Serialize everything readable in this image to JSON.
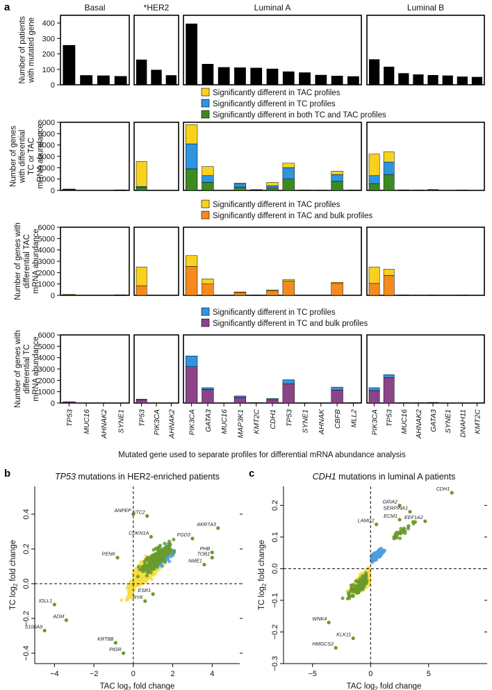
{
  "panels": {
    "a": "a",
    "b": "b",
    "c": "c"
  },
  "colors": {
    "tac": "#f8d21c",
    "tc": "#2f95e0",
    "both": "#3d8a22",
    "tac_bulk": "#f58a1f",
    "tc_bulk": "#8c4488",
    "bars": "#000000",
    "scatter_tac": "#f7dd45",
    "scatter_tc": "#4a9fe0",
    "scatter_both": "#6a9a2d"
  },
  "chart_data": [
    {
      "id": "a-row1",
      "type": "bar",
      "ylabel_lines": [
        "Number of patients",
        "with mutated gene"
      ],
      "ylim": [
        0,
        450
      ],
      "yticks": [
        "0",
        "100",
        "200",
        "300",
        "400"
      ],
      "group_titles": [
        "Basal",
        "*HER2",
        "Luminal A",
        "Luminal B"
      ],
      "groups": [
        {
          "name": "Basal",
          "categories": [
            "TP53",
            "MUC16",
            "AHNAK2",
            "SYNE1"
          ],
          "values": [
            257,
            62,
            60,
            56
          ]
        },
        {
          "name": "*HER2",
          "categories": [
            "TP53",
            "PIK3CA",
            "AHNAK2"
          ],
          "values": [
            163,
            97,
            62
          ]
        },
        {
          "name": "Luminal A",
          "categories": [
            "PIK3CA",
            "GATA3",
            "MUC16",
            "MAP3K1",
            "KMT2C",
            "CDH1",
            "TP53",
            "SYNE1",
            "AHNAK",
            "CBFB",
            "MLL2"
          ],
          "values": [
            396,
            135,
            114,
            112,
            110,
            104,
            86,
            80,
            64,
            58,
            55
          ]
        },
        {
          "name": "Luminal B",
          "categories": [
            "PIK3CA",
            "TP53",
            "MUC16",
            "AHNAK2",
            "GATA3",
            "SYNE1",
            "DNAH11",
            "KMT2C"
          ],
          "values": [
            165,
            117,
            75,
            67,
            63,
            60,
            53,
            51
          ]
        }
      ]
    },
    {
      "id": "a-row2",
      "type": "stacked-bar",
      "ylabel_lines": [
        "Number of genes",
        "with differential",
        "TC or TAC",
        "mRNA abundance"
      ],
      "ylim": [
        0,
        6000
      ],
      "yticks": [
        "0",
        "1000",
        "2000",
        "3000",
        "4000",
        "5000",
        "6000"
      ],
      "legend": [
        "Significantly different in TAC profiles",
        "Significantly different in TC profiles",
        "Significantly different in both TC and TAC profiles"
      ],
      "stack_order": [
        "both",
        "tc",
        "tac"
      ],
      "groups": [
        {
          "name": "Basal",
          "categories": [
            "TP53",
            "MUC16",
            "AHNAK2",
            "SYNE1"
          ],
          "both": [
            60,
            0,
            0,
            20
          ],
          "tc": [
            30,
            0,
            0,
            15
          ],
          "tac": [
            30,
            0,
            0,
            15
          ]
        },
        {
          "name": "*HER2",
          "categories": [
            "TP53",
            "PIK3CA",
            "AHNAK2"
          ],
          "both": [
            250,
            0,
            0
          ],
          "tc": [
            100,
            0,
            0
          ],
          "tac": [
            2200,
            0,
            0
          ]
        },
        {
          "name": "Luminal A",
          "categories": [
            "PIK3CA",
            "GATA3",
            "MUC16",
            "MAP3K1",
            "KMT2C",
            "CDH1",
            "TP53",
            "SYNE1",
            "AHNAK",
            "CBFB",
            "MLL2"
          ],
          "both": [
            1900,
            700,
            0,
            300,
            30,
            200,
            1000,
            20,
            10,
            800,
            20
          ],
          "tc": [
            2200,
            600,
            0,
            280,
            20,
            200,
            1000,
            10,
            10,
            600,
            10
          ],
          "tac": [
            1700,
            800,
            0,
            50,
            20,
            300,
            400,
            10,
            10,
            300,
            10
          ]
        },
        {
          "name": "Luminal B",
          "categories": [
            "PIK3CA",
            "TP53",
            "MUC16",
            "AHNAK2",
            "GATA3",
            "SYNE1",
            "DNAH11",
            "KMT2C"
          ],
          "both": [
            600,
            1400,
            30,
            20,
            50,
            0,
            20,
            0
          ],
          "tc": [
            700,
            1100,
            10,
            10,
            20,
            0,
            10,
            0
          ],
          "tac": [
            1900,
            900,
            10,
            10,
            10,
            0,
            10,
            0
          ]
        }
      ]
    },
    {
      "id": "a-row3",
      "type": "stacked-bar",
      "ylabel_lines": [
        "Number of genes with",
        "differential TAC",
        "mRNA abundance"
      ],
      "ylim": [
        0,
        6000
      ],
      "yticks": [
        "0",
        "1000",
        "2000",
        "3000",
        "4000",
        "5000",
        "6000"
      ],
      "legend": [
        "Significantly different in TAC profiles",
        "Significantly different in TAC and bulk profiles"
      ],
      "stack_order": [
        "tac_bulk",
        "tac"
      ],
      "groups": [
        {
          "name": "Basal",
          "categories": [
            "TP53",
            "MUC16",
            "AHNAK2",
            "SYNE1"
          ],
          "tac_bulk": [
            40,
            0,
            0,
            20
          ],
          "tac": [
            50,
            0,
            0,
            30
          ]
        },
        {
          "name": "*HER2",
          "categories": [
            "TP53",
            "PIK3CA",
            "AHNAK2"
          ],
          "tac_bulk": [
            850,
            0,
            0
          ],
          "tac": [
            1650,
            0,
            0
          ]
        },
        {
          "name": "Luminal A",
          "categories": [
            "PIK3CA",
            "GATA3",
            "MUC16",
            "MAP3K1",
            "KMT2C",
            "CDH1",
            "TP53",
            "SYNE1",
            "AHNAK",
            "CBFB",
            "MLL2"
          ],
          "tac_bulk": [
            2550,
            1000,
            0,
            250,
            20,
            400,
            1250,
            0,
            0,
            1050,
            0
          ],
          "tac": [
            950,
            450,
            0,
            50,
            10,
            80,
            150,
            0,
            0,
            100,
            0
          ]
        },
        {
          "name": "Luminal B",
          "categories": [
            "PIK3CA",
            "TP53",
            "MUC16",
            "AHNAK2",
            "GATA3",
            "SYNE1",
            "DNAH11",
            "KMT2C"
          ],
          "tac_bulk": [
            1050,
            1750,
            30,
            10,
            20,
            0,
            20,
            0
          ],
          "tac": [
            1450,
            550,
            10,
            10,
            10,
            0,
            10,
            0
          ]
        }
      ]
    },
    {
      "id": "a-row4",
      "type": "stacked-bar",
      "ylabel_lines": [
        "Number of genes with",
        "differential TC",
        "mRNA abundance"
      ],
      "ylim": [
        0,
        6000
      ],
      "yticks": [
        "0",
        "1000",
        "2000",
        "3000",
        "4000",
        "5000",
        "6000"
      ],
      "legend": [
        "Significantly different in TC profiles",
        "Significantly different in TC and bulk profiles"
      ],
      "stack_order": [
        "tc_bulk",
        "tc"
      ],
      "xlabel": "Mutated gene used to separate profiles for differential mRNA abundance analysis",
      "groups": [
        {
          "name": "Basal",
          "categories": [
            "TP53",
            "MUC16",
            "AHNAK2",
            "SYNE1"
          ],
          "tc_bulk": [
            80,
            0,
            0,
            0
          ],
          "tc": [
            30,
            0,
            0,
            0
          ]
        },
        {
          "name": "*HER2",
          "categories": [
            "TP53",
            "PIK3CA",
            "AHNAK2"
          ],
          "tc_bulk": [
            280,
            0,
            0
          ],
          "tc": [
            60,
            0,
            0
          ]
        },
        {
          "name": "Luminal A",
          "categories": [
            "PIK3CA",
            "GATA3",
            "MUC16",
            "MAP3K1",
            "KMT2C",
            "CDH1",
            "TP53",
            "SYNE1",
            "AHNAK",
            "CBFB",
            "MLL2"
          ],
          "tc_bulk": [
            3200,
            1200,
            0,
            500,
            20,
            300,
            1700,
            10,
            10,
            1150,
            20
          ],
          "tc": [
            950,
            150,
            0,
            120,
            10,
            100,
            350,
            10,
            10,
            250,
            10
          ]
        },
        {
          "name": "Luminal B",
          "categories": [
            "PIK3CA",
            "TP53",
            "MUC16",
            "AHNAK2",
            "GATA3",
            "SYNE1",
            "DNAH11",
            "KMT2C"
          ],
          "tc_bulk": [
            1100,
            2250,
            20,
            20,
            40,
            0,
            0,
            0
          ],
          "tc": [
            250,
            250,
            10,
            10,
            20,
            0,
            0,
            0
          ]
        }
      ]
    },
    {
      "id": "b",
      "type": "scatter",
      "title_gene": "TP53",
      "title_rest": " mutations in HER2-enriched patients",
      "xlabel": "TAC log",
      "xlabel_sub": "2",
      "xlabel_end": " fold change",
      "ylabel": "TC log",
      "ylabel_sub": "2",
      "ylabel_end": " fold change",
      "xlim": [
        -5,
        5.4
      ],
      "ylim": [
        -0.46,
        0.56
      ],
      "xticks": [
        -4,
        -2,
        0,
        2,
        4
      ],
      "xtick_labels": [
        "−4",
        "−2",
        "0",
        "2",
        "4"
      ],
      "yticks": [
        -0.4,
        -0.2,
        0.0,
        0.2,
        0.4
      ],
      "ytick_labels": [
        "−0.4",
        "−0.2",
        "0.0",
        "0.2",
        "0.4"
      ],
      "annotations": [
        {
          "label": "ANPEP",
          "x": 0.0,
          "y": 0.4
        },
        {
          "label": "STC2",
          "x": 0.7,
          "y": 0.39
        },
        {
          "label": "AKR7A3",
          "x": 4.3,
          "y": 0.32
        },
        {
          "label": "CDKN1A",
          "x": 0.9,
          "y": 0.27
        },
        {
          "label": "FGD3",
          "x": 3.0,
          "y": 0.26
        },
        {
          "label": "PHB",
          "x": 4.0,
          "y": 0.18
        },
        {
          "label": "TOB1",
          "x": 4.0,
          "y": 0.15
        },
        {
          "label": "PENK",
          "x": -0.8,
          "y": 0.15
        },
        {
          "label": "NME1",
          "x": 3.6,
          "y": 0.11
        },
        {
          "label": "ESR1",
          "x": 1.0,
          "y": -0.06
        },
        {
          "label": "RYK",
          "x": 0.6,
          "y": -0.1
        },
        {
          "label": "IGLL1",
          "x": -4.0,
          "y": -0.12
        },
        {
          "label": "ADM",
          "x": -3.4,
          "y": -0.21
        },
        {
          "label": "S100A9",
          "x": -4.5,
          "y": -0.27
        },
        {
          "label": "KRT8B",
          "x": -0.9,
          "y": -0.34
        },
        {
          "label": "PIGR",
          "x": -0.5,
          "y": -0.4
        }
      ]
    },
    {
      "id": "c",
      "type": "scatter",
      "title_gene": "CDH1",
      "title_rest": " mutations in luminal A patients",
      "xlabel": "TAC log",
      "xlabel_sub": "2",
      "xlabel_end": " fold change",
      "ylabel": "TC log",
      "ylabel_sub": "2",
      "ylabel_end": " fold change",
      "xlim": [
        -7.5,
        9.8
      ],
      "ylim": [
        -0.3,
        0.26
      ],
      "xticks": [
        -5,
        0,
        5
      ],
      "xtick_labels": [
        "−5",
        "0",
        "5"
      ],
      "yticks": [
        -0.3,
        -0.2,
        -0.1,
        0.0,
        0.1,
        0.2
      ],
      "ytick_labels": [
        "−0.3",
        "−0.2",
        "−0.1",
        "0.0",
        "0.1",
        "0.2"
      ],
      "annotations": [
        {
          "label": "CDH1",
          "x": 7.0,
          "y": 0.24
        },
        {
          "label": "GRIA2",
          "x": 2.5,
          "y": 0.2
        },
        {
          "label": "SERPINA1",
          "x": 3.4,
          "y": 0.18
        },
        {
          "label": "ECM1",
          "x": 2.5,
          "y": 0.155
        },
        {
          "label": "EEF1A2",
          "x": 4.7,
          "y": 0.15
        },
        {
          "label": "LAMC2",
          "x": 0.5,
          "y": 0.14
        },
        {
          "label": "WNK4",
          "x": -3.6,
          "y": -0.17
        },
        {
          "label": "KLK11",
          "x": -1.5,
          "y": -0.22
        },
        {
          "label": "HMGCS2",
          "x": -3.0,
          "y": -0.25
        }
      ]
    }
  ]
}
